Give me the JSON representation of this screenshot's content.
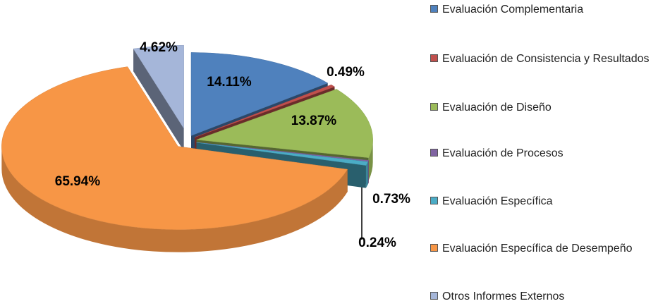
{
  "chart_data": {
    "type": "pie",
    "categories": [
      "Evaluación Complementaria",
      "Evaluación de Consistencia y Resultados",
      "Evaluación de Diseño",
      "Evaluación de Procesos",
      "Evaluación Específica",
      "Evaluación Específica de Desempeño",
      "Otros Informes Externos"
    ],
    "values": [
      14.11,
      0.49,
      13.87,
      0.24,
      0.73,
      65.94,
      4.62
    ],
    "value_labels": [
      "14.11%",
      "0.49%",
      "13.87%",
      "0.24%",
      "0.73%",
      "65.94%",
      "4.62%"
    ],
    "colors": [
      "#4f81bd",
      "#c0504d",
      "#9bbb59",
      "#8064a2",
      "#4bacc6",
      "#f79646",
      "#a5b6d9"
    ],
    "legend": "right"
  }
}
